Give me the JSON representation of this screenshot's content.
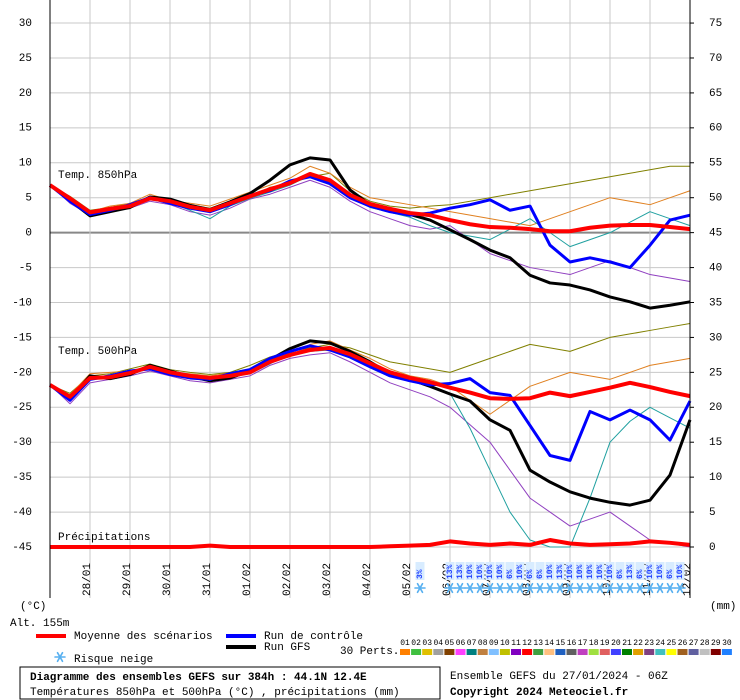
{
  "chart_data": {
    "type": "line",
    "labels": {
      "t850": "Temp. 850hPa",
      "t500": "Temp. 500hPa",
      "precip": "Précipitations"
    },
    "ylabel": "(°C)",
    "y2label": "(mm)",
    "altitude": "Alt. 155m",
    "x": [
      0,
      12,
      24,
      36,
      48,
      60,
      72,
      84,
      96,
      108,
      120,
      132,
      144,
      156,
      168,
      180,
      192,
      204,
      216,
      228,
      240,
      252,
      264,
      276,
      288,
      300,
      312,
      324,
      336,
      348,
      360,
      372,
      384
    ],
    "xlim": [
      0,
      384
    ],
    "xticks": [
      {
        "value": 24,
        "label": "28/01"
      },
      {
        "value": 48,
        "label": "29/01"
      },
      {
        "value": 72,
        "label": "30/01"
      },
      {
        "value": 96,
        "label": "31/01"
      },
      {
        "value": 120,
        "label": "01/02"
      },
      {
        "value": 144,
        "label": "02/02"
      },
      {
        "value": 168,
        "label": "03/02"
      },
      {
        "value": 192,
        "label": "04/02"
      },
      {
        "value": 216,
        "label": "05/02"
      },
      {
        "value": 240,
        "label": "06/02"
      },
      {
        "value": 264,
        "label": "07/02"
      },
      {
        "value": 288,
        "label": "08/02"
      },
      {
        "value": 312,
        "label": "09/02"
      },
      {
        "value": 336,
        "label": "10/02"
      },
      {
        "value": 360,
        "label": "11/02"
      },
      {
        "value": 384,
        "label": "12/02"
      }
    ],
    "ylim": [
      -52.3,
      33.3
    ],
    "yticks": [
      30,
      25,
      20,
      15,
      10,
      5,
      0,
      -5,
      -10,
      -15,
      -20,
      -25,
      -30,
      -35,
      -40,
      -45
    ],
    "y2lim": [
      -7.3,
      78.3
    ],
    "y2ticks": [
      75,
      70,
      65,
      60,
      55,
      50,
      45,
      40,
      35,
      30,
      25,
      20,
      15,
      10,
      5,
      0
    ],
    "grid": true,
    "series": [
      {
        "name": "Moyenne des scénarios",
        "color": "#ff0000",
        "t850": [
          6.8,
          4.9,
          2.9,
          3.4,
          3.8,
          4.9,
          4.5,
          3.7,
          3.2,
          4.2,
          5.2,
          6.2,
          7.1,
          8.4,
          7.5,
          5.4,
          4.1,
          3.4,
          2.8,
          2.5,
          1.8,
          1.2,
          0.8,
          0.7,
          0.5,
          0.2,
          0.2,
          0.7,
          1.0,
          1.1,
          1.1,
          0.8,
          0.5
        ],
        "t500": [
          -21.8,
          -23.5,
          -20.8,
          -20.7,
          -20.1,
          -19.2,
          -20.0,
          -20.5,
          -20.8,
          -20.5,
          -20.0,
          -18.5,
          -17.5,
          -16.8,
          -16.5,
          -17.4,
          -18.7,
          -20.0,
          -20.8,
          -21.4,
          -22.2,
          -22.9,
          -23.7,
          -23.8,
          -23.7,
          -22.9,
          -23.4,
          -22.8,
          -22.2,
          -21.5,
          -22.1,
          -22.8,
          -23.4
        ],
        "precip": [
          0,
          0,
          0,
          0,
          0,
          0,
          0,
          0,
          0.2,
          0,
          0,
          0,
          0,
          0,
          0,
          0,
          0,
          0.1,
          0.2,
          0.3,
          0.8,
          0.5,
          0.3,
          0.5,
          0.3,
          1.0,
          0.5,
          0.3,
          0.4,
          0.5,
          0.8,
          0.6,
          0.3
        ]
      },
      {
        "name": "Run de contrôle",
        "color": "#0000ff",
        "t850": [
          6.8,
          4.5,
          2.6,
          3.2,
          4.0,
          5.0,
          4.2,
          3.5,
          3.0,
          4.0,
          5.3,
          6.0,
          7.4,
          8.0,
          7.0,
          5.0,
          3.8,
          3.0,
          2.5,
          2.8,
          3.5,
          4.0,
          4.7,
          3.2,
          3.8,
          -1.8,
          -4.2,
          -3.6,
          -4.2,
          -5.0,
          -1.8,
          1.8,
          2.5
        ],
        "t500": [
          -21.8,
          -24.0,
          -21.0,
          -20.5,
          -19.8,
          -19.5,
          -20.3,
          -20.8,
          -21.0,
          -20.2,
          -19.6,
          -18.0,
          -17.0,
          -16.2,
          -16.8,
          -17.8,
          -19.2,
          -20.5,
          -21.2,
          -21.8,
          -21.6,
          -20.9,
          -22.9,
          -23.3,
          -27.6,
          -31.9,
          -32.6,
          -25.6,
          -26.8,
          -25.4,
          -26.8,
          -29.7,
          -24.1
        ]
      },
      {
        "name": "Run GFS",
        "color": "#000000",
        "t850": [
          6.8,
          4.6,
          2.4,
          3.0,
          3.6,
          5.1,
          4.8,
          3.9,
          3.3,
          4.4,
          5.6,
          7.5,
          9.7,
          10.7,
          10.4,
          6.1,
          4.0,
          3.2,
          2.6,
          1.8,
          0.4,
          -1.0,
          -2.5,
          -3.6,
          -6.1,
          -7.2,
          -7.5,
          -8.2,
          -9.2,
          -9.9,
          -10.8,
          -10.4,
          -9.9
        ],
        "t500": [
          -21.8,
          -23.8,
          -20.5,
          -20.9,
          -20.3,
          -19.0,
          -19.8,
          -20.6,
          -21.2,
          -20.8,
          -19.8,
          -18.2,
          -16.6,
          -15.5,
          -15.8,
          -17.0,
          -18.5,
          -20.2,
          -21.0,
          -22.0,
          -23.1,
          -24.1,
          -26.8,
          -28.3,
          -34.0,
          -35.7,
          -37.1,
          -38.0,
          -38.6,
          -39.0,
          -38.3,
          -34.7,
          -26.8
        ]
      }
    ],
    "perturbations": [
      {
        "color": "#808000",
        "t850": [
          6.8,
          5.2,
          3.2,
          3.6,
          4.2,
          5.0,
          4.8,
          4.0,
          3.5,
          4.5,
          5.0,
          6.5,
          7.0,
          8.0,
          8.5,
          6.0,
          4.5,
          3.8,
          3.5,
          3.8,
          4.0,
          4.5,
          5.0,
          5.5,
          6.0,
          6.5,
          7.0,
          7.5,
          8.0,
          8.5,
          9.0,
          9.5,
          9.5
        ],
        "t500": [
          -21.8,
          -23.0,
          -20.5,
          -20.2,
          -19.5,
          -18.8,
          -19.6,
          -20.0,
          -20.3,
          -20.0,
          -19.0,
          -17.8,
          -17.0,
          -16.5,
          -16.0,
          -16.5,
          -17.5,
          -18.5,
          -19.0,
          -19.5,
          -20.0,
          -19.0,
          -18.0,
          -17.0,
          -16.0,
          -16.5,
          -17.0,
          -16.0,
          -15.0,
          -14.5,
          -14.0,
          -13.5,
          -13.0
        ]
      },
      {
        "color": "#9040c0",
        "t850": [
          6.8,
          4.2,
          2.5,
          3.0,
          3.5,
          4.5,
          4.0,
          3.0,
          2.5,
          3.5,
          4.8,
          5.5,
          6.5,
          7.5,
          6.5,
          4.5,
          3.0,
          2.0,
          1.0,
          0.5,
          1.0,
          -1.0,
          -3.0,
          -4.0,
          -5.0,
          -5.5,
          -6.0,
          -5.0,
          -4.0,
          -5.0,
          -6.0,
          -6.5,
          -7.0
        ],
        "t500": [
          -21.8,
          -24.5,
          -21.5,
          -21.0,
          -20.5,
          -19.8,
          -20.5,
          -21.2,
          -21.5,
          -21.0,
          -20.5,
          -19.0,
          -18.0,
          -17.5,
          -17.2,
          -18.5,
          -20.0,
          -21.5,
          -22.5,
          -23.5,
          -25.0,
          -27.5,
          -30.0,
          -34.0,
          -38.0,
          -40.0,
          -42.0,
          -41.0,
          -40.0,
          -42.0,
          -44.0,
          -44.5,
          -45.0
        ]
      },
      {
        "color": "#e08020",
        "t850": [
          6.8,
          5.0,
          3.0,
          3.8,
          4.2,
          5.5,
          4.6,
          4.2,
          3.8,
          4.8,
          5.8,
          6.8,
          7.8,
          9.5,
          8.5,
          6.5,
          5.0,
          4.5,
          4.0,
          3.5,
          3.0,
          2.5,
          2.0,
          1.5,
          1.0,
          2.0,
          3.0,
          4.0,
          5.0,
          4.5,
          4.0,
          5.0,
          6.0
        ],
        "t500": [
          -21.8,
          -23.2,
          -20.2,
          -20.0,
          -19.8,
          -19.5,
          -20.0,
          -20.2,
          -20.5,
          -20.1,
          -19.5,
          -18.2,
          -17.8,
          -16.0,
          -15.5,
          -16.8,
          -18.0,
          -19.5,
          -20.5,
          -21.0,
          -22.0,
          -24.0,
          -26.0,
          -24.0,
          -22.0,
          -21.0,
          -20.0,
          -20.5,
          -21.0,
          -20.0,
          -19.0,
          -18.5,
          -18.0
        ]
      },
      {
        "color": "#20a0a0",
        "t850": [
          6.8,
          4.8,
          2.8,
          3.3,
          3.9,
          4.7,
          4.3,
          3.2,
          2.0,
          3.8,
          4.9,
          5.8,
          6.8,
          8.2,
          7.2,
          5.2,
          3.6,
          2.9,
          2.2,
          1.0,
          0.0,
          -0.5,
          -1.0,
          0.5,
          2.0,
          0.0,
          -2.0,
          -1.0,
          0.0,
          1.5,
          3.0,
          2.0,
          1.0
        ],
        "t500": [
          -21.8,
          -23.6,
          -21.0,
          -20.6,
          -20.2,
          -19.4,
          -20.2,
          -20.7,
          -21.0,
          -20.6,
          -20.2,
          -18.8,
          -17.2,
          -17.0,
          -16.8,
          -17.6,
          -19.0,
          -20.4,
          -21.2,
          -22.0,
          -23.0,
          -28.0,
          -34.0,
          -40.0,
          -44.0,
          -45.0,
          -45.0,
          -38.0,
          -30.0,
          -27.0,
          -25.0,
          -26.5,
          -28.0
        ]
      }
    ],
    "snow_risk": {
      "label": "Risque neige",
      "x": [
        222,
        240,
        246,
        252,
        258,
        264,
        270,
        276,
        282,
        288,
        294,
        300,
        306,
        312,
        318,
        324,
        330,
        336,
        342,
        348,
        354,
        360,
        366,
        372,
        378
      ],
      "values": [
        3,
        13,
        13,
        10,
        10,
        10,
        10,
        6,
        10,
        6,
        6,
        10,
        13,
        10,
        10,
        10,
        10,
        10,
        6,
        13,
        6,
        10,
        10,
        6,
        10
      ],
      "value_labels": [
        "3%",
        "13%",
        "13%",
        "10%",
        "10%",
        "10%",
        "10%",
        "6%",
        "10%",
        "6%",
        "6%",
        "10%",
        "13%",
        "10%",
        "10%",
        "10%",
        "10%",
        "10%",
        "6%",
        "13%",
        "6%",
        "10%",
        "10%",
        "6%",
        "10%"
      ]
    },
    "pert_legend": {
      "label": "30 Perts.",
      "names": [
        "01",
        "02",
        "03",
        "04",
        "05",
        "06",
        "07",
        "08",
        "09",
        "10",
        "11",
        "12",
        "13",
        "14",
        "15",
        "16",
        "17",
        "18",
        "19",
        "20",
        "21",
        "22",
        "23",
        "24",
        "25",
        "26",
        "27",
        "28",
        "29",
        "30"
      ],
      "colors": [
        "#ff8000",
        "#40c040",
        "#e0c000",
        "#a0a0a0",
        "#804000",
        "#ff40ff",
        "#008080",
        "#c08040",
        "#80c0ff",
        "#c0c000",
        "#8000c0",
        "#ff0000",
        "#40a040",
        "#ffc080",
        "#2060c0",
        "#606060",
        "#c040c0",
        "#a0e040",
        "#e06060",
        "#4040ff",
        "#008000",
        "#e0a000",
        "#804080",
        "#40c0c0",
        "#ffff00",
        "#a06020",
        "#6060a0",
        "#c0c0c0",
        "#800000",
        "#2080ff"
      ]
    },
    "footer": {
      "title": "Diagramme des ensembles GEFS sur 384h : 44.1N 12.4E",
      "subtitle": "Températures 850hPa et 500hPa (°C) , précipitations (mm)",
      "run": "Ensemble GEFS du 27/01/2024 - 06Z",
      "copyright": "Copyright 2024 Meteociel.fr"
    }
  }
}
